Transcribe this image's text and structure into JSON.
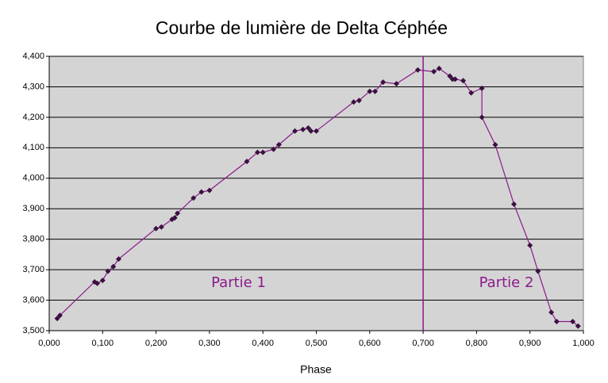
{
  "chart_data": {
    "type": "scatter",
    "title": "Courbe de lumière de Delta Céphée",
    "x_label": "Phase",
    "annotations": [
      "Partie 1",
      "Partie 2"
    ],
    "vline": 0.7,
    "vline_color": "#8b1a8b",
    "plot_background": "#d4d4d4",
    "grid": true,
    "series": [
      {
        "color": "#8b1a8b",
        "marker_color": "#3a1040",
        "x": [
          0.015,
          0.02,
          0.085,
          0.09,
          0.1,
          0.11,
          0.12,
          0.13,
          0.2,
          0.21,
          0.23,
          0.235,
          0.24,
          0.27,
          0.285,
          0.3,
          0.37,
          0.39,
          0.4,
          0.42,
          0.43,
          0.46,
          0.475,
          0.485,
          0.49,
          0.5,
          0.57,
          0.58,
          0.6,
          0.61,
          0.625,
          0.65,
          0.69,
          0.72,
          0.73,
          0.75,
          0.755,
          0.76,
          0.775,
          0.79,
          0.81,
          0.81,
          0.835,
          0.87,
          0.9,
          0.915,
          0.94,
          0.95,
          0.98,
          0.99
        ],
        "values": [
          3.54,
          3.55,
          3.66,
          3.655,
          3.665,
          3.695,
          3.71,
          3.735,
          3.835,
          3.84,
          3.865,
          3.87,
          3.885,
          3.935,
          3.955,
          3.96,
          4.055,
          4.085,
          4.085,
          4.095,
          4.11,
          4.155,
          4.16,
          4.165,
          4.155,
          4.155,
          4.25,
          4.255,
          4.285,
          4.285,
          4.315,
          4.31,
          4.355,
          4.35,
          4.36,
          4.335,
          4.325,
          4.325,
          4.32,
          4.28,
          4.295,
          4.2,
          4.11,
          3.915,
          3.78,
          3.695,
          3.56,
          3.53,
          3.53,
          3.515
        ]
      }
    ],
    "xlim": [
      0,
      1
    ],
    "xticks": [
      {
        "value": 0,
        "label": "0,000"
      },
      {
        "value": 0.1,
        "label": "0,100"
      },
      {
        "value": 0.2,
        "label": "0,200"
      },
      {
        "value": 0.3,
        "label": "0,300"
      },
      {
        "value": 0.4,
        "label": "0,400"
      },
      {
        "value": 0.5,
        "label": "0,500"
      },
      {
        "value": 0.6,
        "label": "0,600"
      },
      {
        "value": 0.7,
        "label": "0,700"
      },
      {
        "value": 0.8,
        "label": "0,800"
      },
      {
        "value": 0.9,
        "label": "0,900"
      },
      {
        "value": 1,
        "label": "1,000"
      }
    ],
    "ylim": [
      3.5,
      4.4
    ],
    "yticks": [
      {
        "value": 3.5,
        "label": "3,500"
      },
      {
        "value": 3.6,
        "label": "3,600"
      },
      {
        "value": 3.7,
        "label": "3,700"
      },
      {
        "value": 3.8,
        "label": "3,800"
      },
      {
        "value": 3.9,
        "label": "3,900"
      },
      {
        "value": 4,
        "label": "4,000"
      },
      {
        "value": 4.1,
        "label": "4,100"
      },
      {
        "value": 4.2,
        "label": "4,200"
      },
      {
        "value": 4.3,
        "label": "4,300"
      },
      {
        "value": 4.4,
        "label": "4,400"
      }
    ]
  }
}
